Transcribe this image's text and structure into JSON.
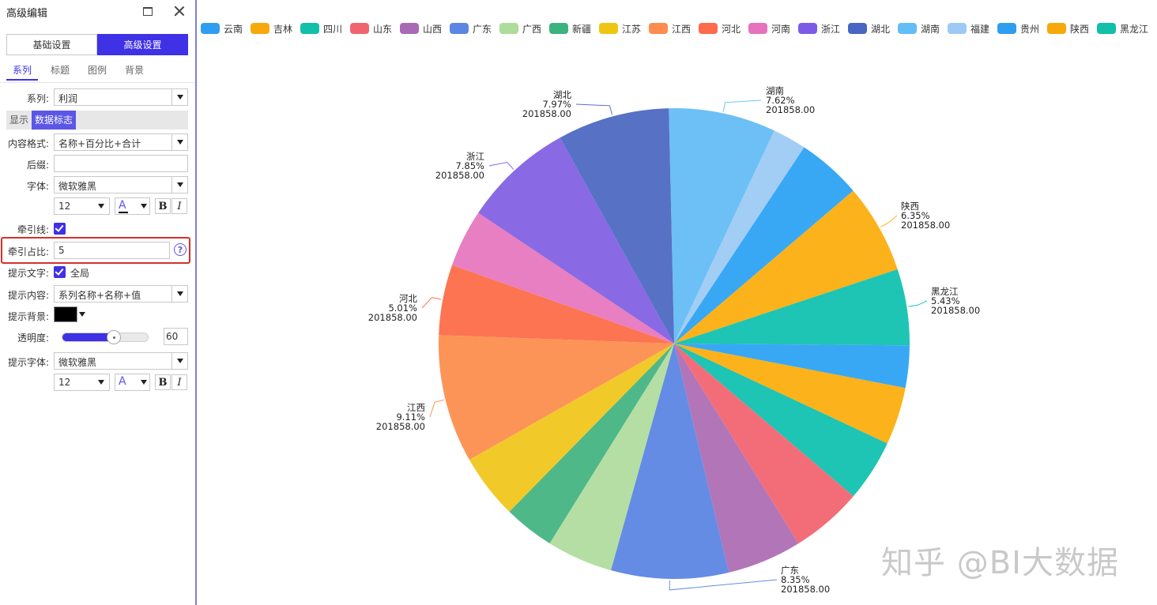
{
  "panel": {
    "title": "高级编辑",
    "tabs": {
      "basic": "基础设置",
      "advanced": "高级设置"
    },
    "subtabs": [
      "系列",
      "标题",
      "图例",
      "背景"
    ],
    "series_label": "系列:",
    "series_value": "利润",
    "tab2": {
      "show": "显示",
      "label": "数据标志"
    },
    "content_format_label": "内容格式:",
    "content_format_value": "名称+百分比+合计",
    "suffix_label": "后缀:",
    "suffix_value": "",
    "font_label": "字体:",
    "font_value": "微软雅黑",
    "font_size": "12",
    "font_color_glyph": "A",
    "bold_label": "B",
    "italic_label": "I",
    "leader_line_label": "牵引线:",
    "leader_ratio_label": "牵引占比:",
    "leader_ratio_value": "5",
    "help_glyph": "?",
    "tooltip_text_label": "提示文字:",
    "tooltip_text_scope": "全局",
    "tooltip_content_label": "提示内容:",
    "tooltip_content_value": "系列名称+名称+值",
    "tooltip_bg_label": "提示背景:",
    "tooltip_bg_color": "#000000",
    "opacity_label": "透明度:",
    "opacity_value": "60",
    "tooltip_font_label": "提示字体:",
    "tooltip_font_value": "微软雅黑",
    "tooltip_font_size": "12",
    "tooltip_color_glyph": "A"
  },
  "legend": [
    {
      "name": "云南",
      "color": "#2f9ef0"
    },
    {
      "name": "吉林",
      "color": "#f7a90b"
    },
    {
      "name": "四川",
      "color": "#12bfa8"
    },
    {
      "name": "山东",
      "color": "#f06470"
    },
    {
      "name": "山西",
      "color": "#a86ab4"
    },
    {
      "name": "广东",
      "color": "#5b86e3"
    },
    {
      "name": "广西",
      "color": "#aedc9b"
    },
    {
      "name": "新疆",
      "color": "#3cb37f"
    },
    {
      "name": "江苏",
      "color": "#efc513"
    },
    {
      "name": "江西",
      "color": "#fd8d4e"
    },
    {
      "name": "河北",
      "color": "#fd6b4c"
    },
    {
      "name": "河南",
      "color": "#e673bd"
    },
    {
      "name": "浙江",
      "color": "#7c5ce6"
    },
    {
      "name": "湖北",
      "color": "#4a66c4"
    },
    {
      "name": "湖南",
      "color": "#63bdf7"
    },
    {
      "name": "福建",
      "color": "#9ccaf5"
    },
    {
      "name": "贵州",
      "color": "#2f9ef0"
    },
    {
      "name": "陕西",
      "color": "#f7a90b"
    },
    {
      "name": "黑龙江",
      "color": "#12bfa8"
    }
  ],
  "chart_data": {
    "type": "pie",
    "total_label": "201858.00",
    "slices": [
      {
        "name": "湖南",
        "value": 7.62,
        "color": "#6cc0f6"
      },
      {
        "name": "福建",
        "value": 2.4,
        "color": "#a2cdf5"
      },
      {
        "name": "贵州",
        "value": 4.6,
        "color": "#38a8f4"
      },
      {
        "name": "陕西",
        "value": 6.35,
        "color": "#fcb21b"
      },
      {
        "name": "黑龙江",
        "value": 5.43,
        "color": "#1ec4b4"
      },
      {
        "name": "云南",
        "value": 3.0,
        "color": "#38a8f4"
      },
      {
        "name": "吉林",
        "value": 4.1,
        "color": "#fcb21b"
      },
      {
        "name": "四川",
        "value": 4.4,
        "color": "#1ec4b4"
      },
      {
        "name": "山东",
        "value": 5.1,
        "color": "#f36d79"
      },
      {
        "name": "山西",
        "value": 5.3,
        "color": "#b275b8"
      },
      {
        "name": "广东",
        "value": 8.35,
        "color": "#658ce4"
      },
      {
        "name": "广西",
        "value": 4.7,
        "color": "#b4dea3"
      },
      {
        "name": "新疆",
        "value": 3.6,
        "color": "#4fb889"
      },
      {
        "name": "江苏",
        "value": 4.6,
        "color": "#f1ca2a"
      },
      {
        "name": "江西",
        "value": 9.11,
        "color": "#fd9457"
      },
      {
        "name": "河北",
        "value": 5.01,
        "color": "#fd7452"
      },
      {
        "name": "河南",
        "value": 4.1,
        "color": "#e87fc2"
      },
      {
        "name": "浙江",
        "value": 7.85,
        "color": "#8a69e4"
      },
      {
        "name": "湖北",
        "value": 7.97,
        "color": "#5771c4"
      }
    ],
    "labeled": [
      {
        "name": "湖南",
        "pct": "7.62%"
      },
      {
        "name": "陕西",
        "pct": "6.35%"
      },
      {
        "name": "黑龙江",
        "pct": "5.43%"
      },
      {
        "name": "广东",
        "pct": "8.35%"
      },
      {
        "name": "江西",
        "pct": "9.11%"
      },
      {
        "name": "河北",
        "pct": "5.01%"
      },
      {
        "name": "浙江",
        "pct": "7.85%"
      },
      {
        "name": "湖北",
        "pct": "7.97%"
      }
    ]
  },
  "watermark": "知乎 @BI大数据"
}
